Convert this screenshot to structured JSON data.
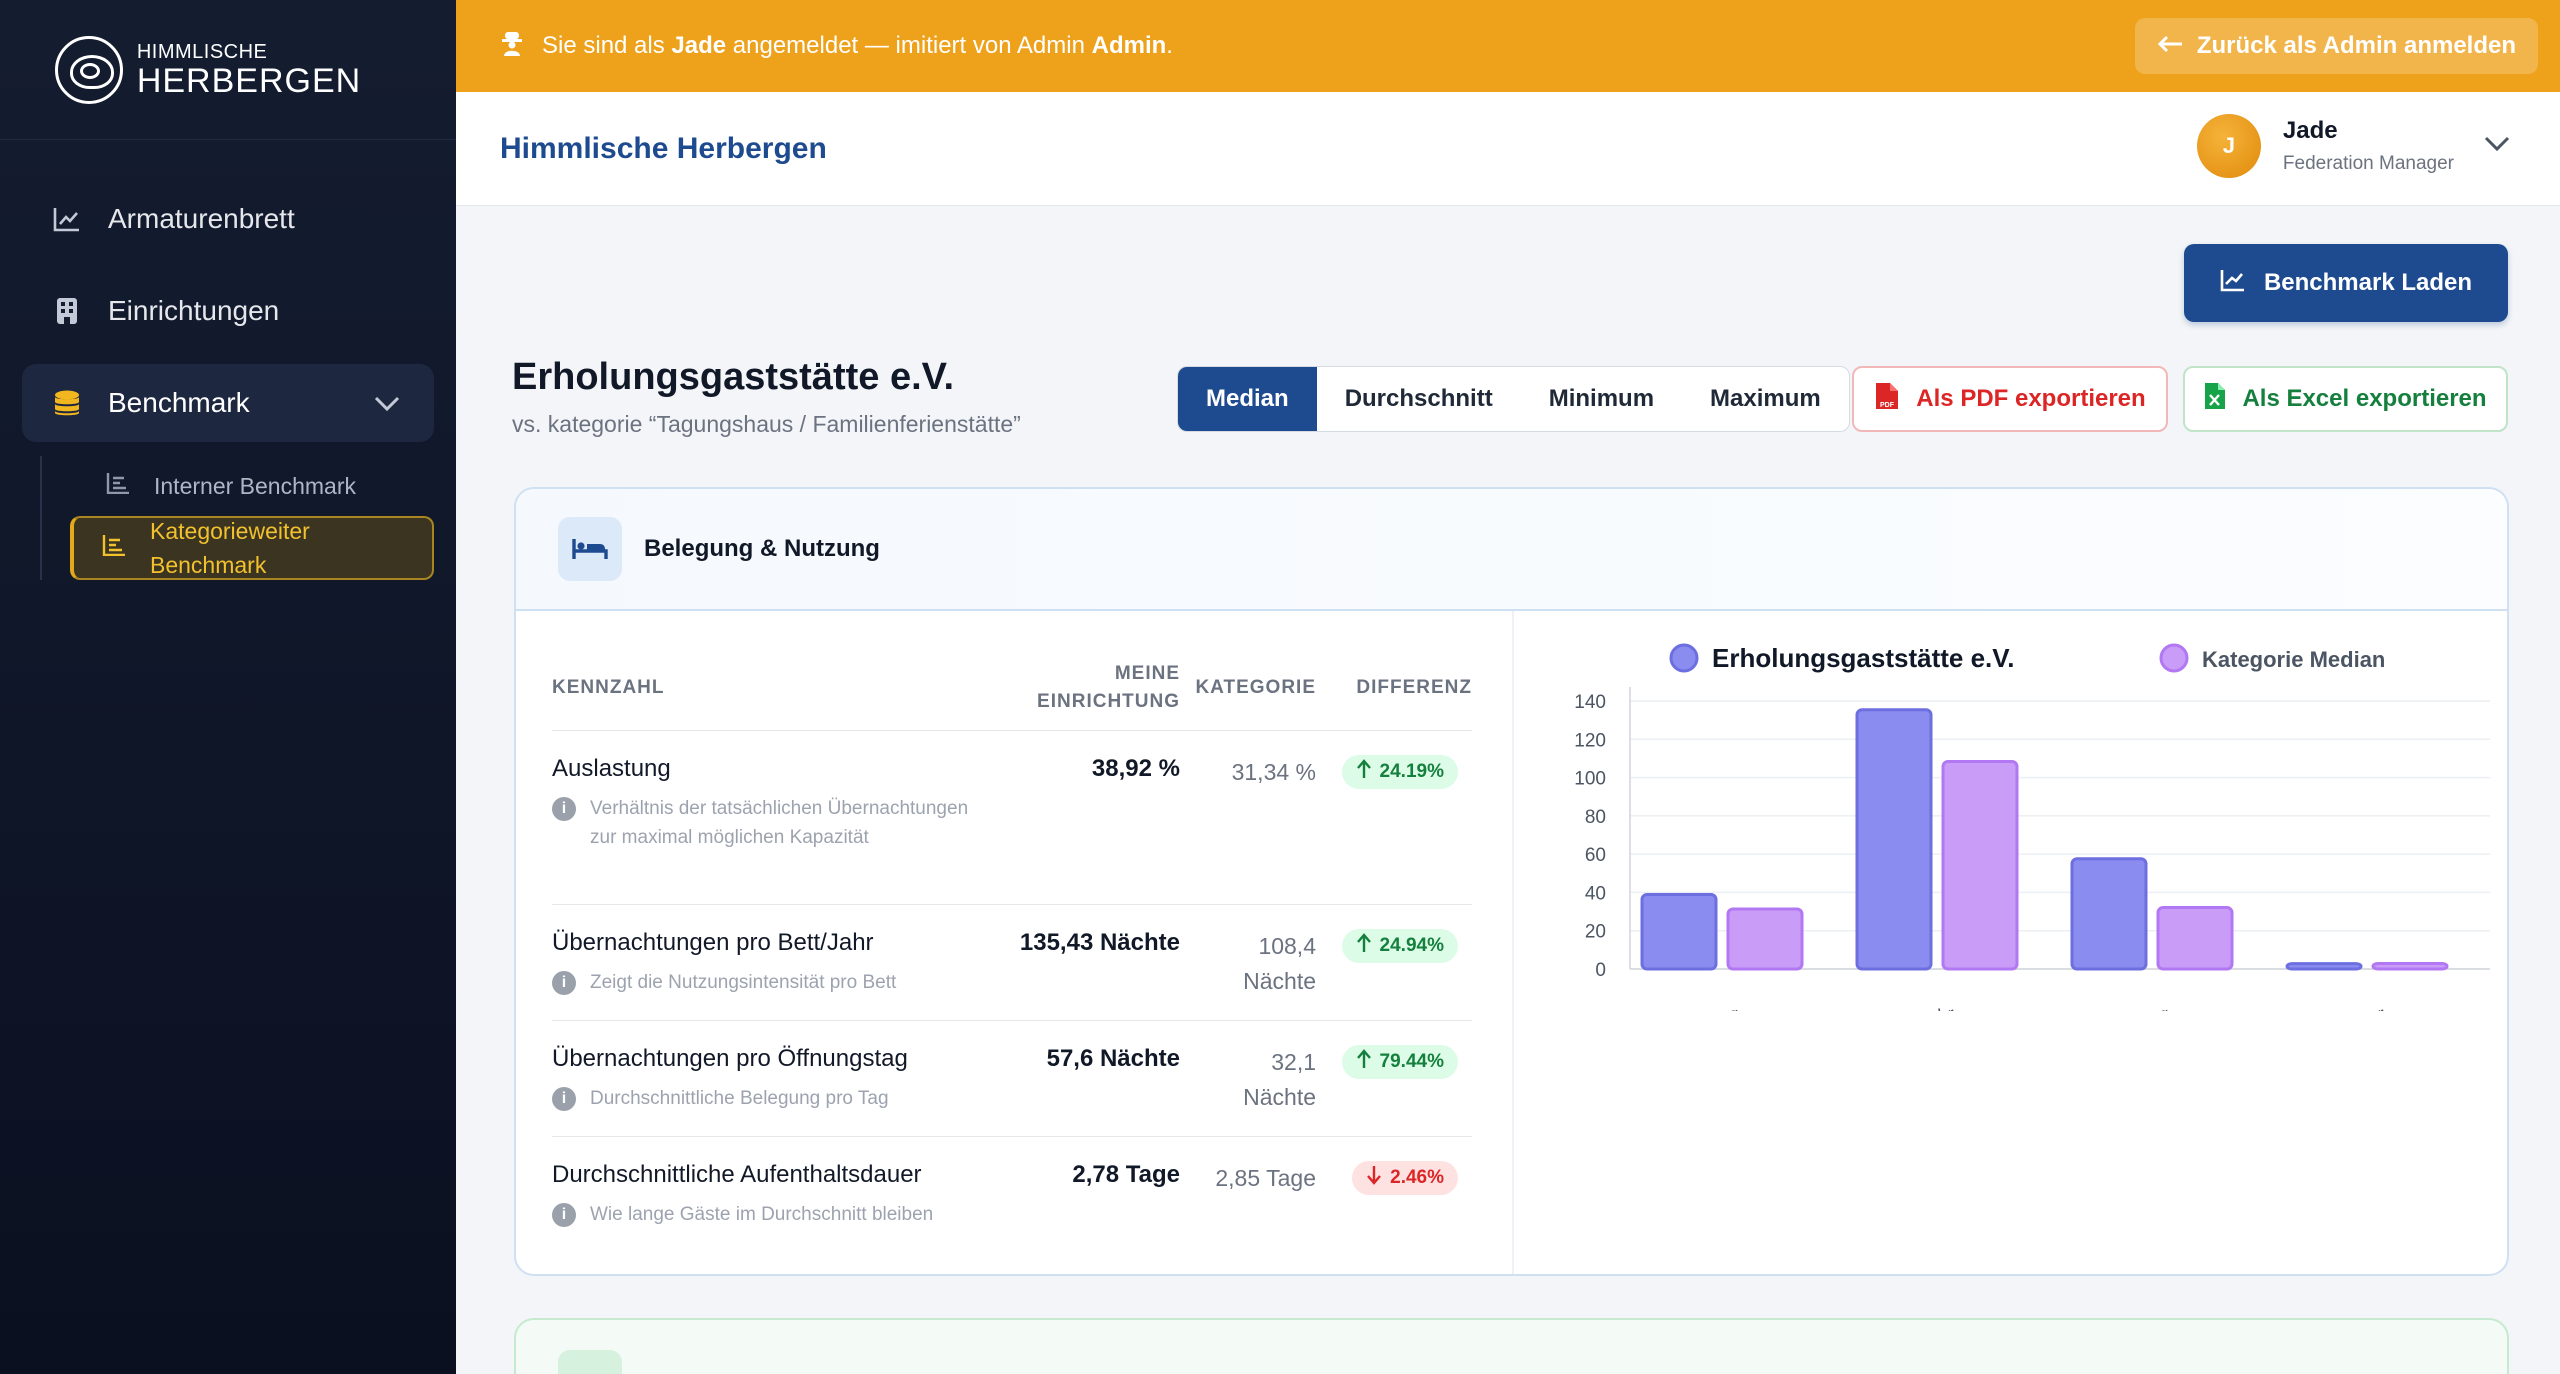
{
  "brand": {
    "line1": "HIMMLISCHE",
    "line2": "HERBERGEN"
  },
  "sidebar": {
    "items": [
      {
        "label": "Armaturenbrett",
        "icon": "chart-line-icon"
      },
      {
        "label": "Einrichtungen",
        "icon": "building-icon"
      },
      {
        "label": "Benchmark",
        "icon": "coins-icon"
      }
    ],
    "subitems": [
      {
        "label": "Interner Benchmark"
      },
      {
        "label": "Kategorieweiter Benchmark"
      }
    ]
  },
  "banner": {
    "pre": "Sie sind als ",
    "user": "Jade",
    "mid": " angemeldet — imitiert von Admin ",
    "admin": "Admin",
    "post": ".",
    "back_label": "Zurück als Admin anmelden"
  },
  "header": {
    "title": "Himmlische Herbergen"
  },
  "user": {
    "initial": "J",
    "name": "Jade",
    "role": "Federation Manager"
  },
  "actions": {
    "load_label": "Benchmark Laden",
    "pdf_label": "Als PDF exportieren",
    "excel_label": "Als Excel exportieren"
  },
  "facility": {
    "name": "Erholungsgaststätte e.V.",
    "subtitle": "vs. kategorie “Tagungshaus / Familienferienstätte”"
  },
  "stat_modes": [
    "Median",
    "Durchschnitt",
    "Minimum",
    "Maximum"
  ],
  "section": {
    "title": "Belegung & Nutzung",
    "columns": {
      "kennzahl": "KENNZAHL",
      "mine_1": "MEINE",
      "mine_2": "EINRICHTUNG",
      "kategorie": "KATEGORIE",
      "differenz": "DIFFERENZ"
    },
    "rows": [
      {
        "name": "Auslastung",
        "desc": "Verhältnis der tatsächlichen Übernachtungen zur maximal möglichen Kapazität",
        "mine": "38,92 %",
        "cat": "31,34 %",
        "diff": "24.19%",
        "dir": "up"
      },
      {
        "name": "Übernachtungen pro Bett/Jahr",
        "desc": "Zeigt die Nutzungsintensität pro Bett",
        "mine": "135,43 Nächte",
        "cat": "108,4 Nächte",
        "diff": "24.94%",
        "dir": "up"
      },
      {
        "name": "Übernachtungen pro Öffnungstag",
        "desc": "Durchschnittliche Belegung pro Tag",
        "mine": "57,6 Nächte",
        "cat": "32,1 Nächte",
        "diff": "79.44%",
        "dir": "up"
      },
      {
        "name": "Durchschnittliche Aufenthaltsdauer",
        "desc": "Wie lange Gäste im Durchschnitt bleiben",
        "mine": "2,78 Tage",
        "cat": "2,85 Tage",
        "diff": "2.46%",
        "dir": "down"
      }
    ]
  },
  "chart_data": {
    "type": "bar",
    "categories": [
      "Auslastung",
      "Übernachtungen pro Bett/Jahr",
      "Übernachtungen pro Öffnungstag",
      "Durchschnittliche Aufenthaltsdauer"
    ],
    "series": [
      {
        "name": "Erholungsgaststätte e.V.",
        "values": [
          38.92,
          135.43,
          57.6,
          2.78
        ],
        "color": "#8b8cf0"
      },
      {
        "name": "Kategorie Median",
        "values": [
          31.34,
          108.4,
          32.1,
          2.85
        ],
        "color": "#c99cf7"
      }
    ],
    "ylim": [
      0,
      140
    ],
    "yticks": [
      "0",
      "20",
      "40",
      "60",
      "80",
      "100",
      "120",
      "140"
    ],
    "legend": "top",
    "grid": true
  }
}
